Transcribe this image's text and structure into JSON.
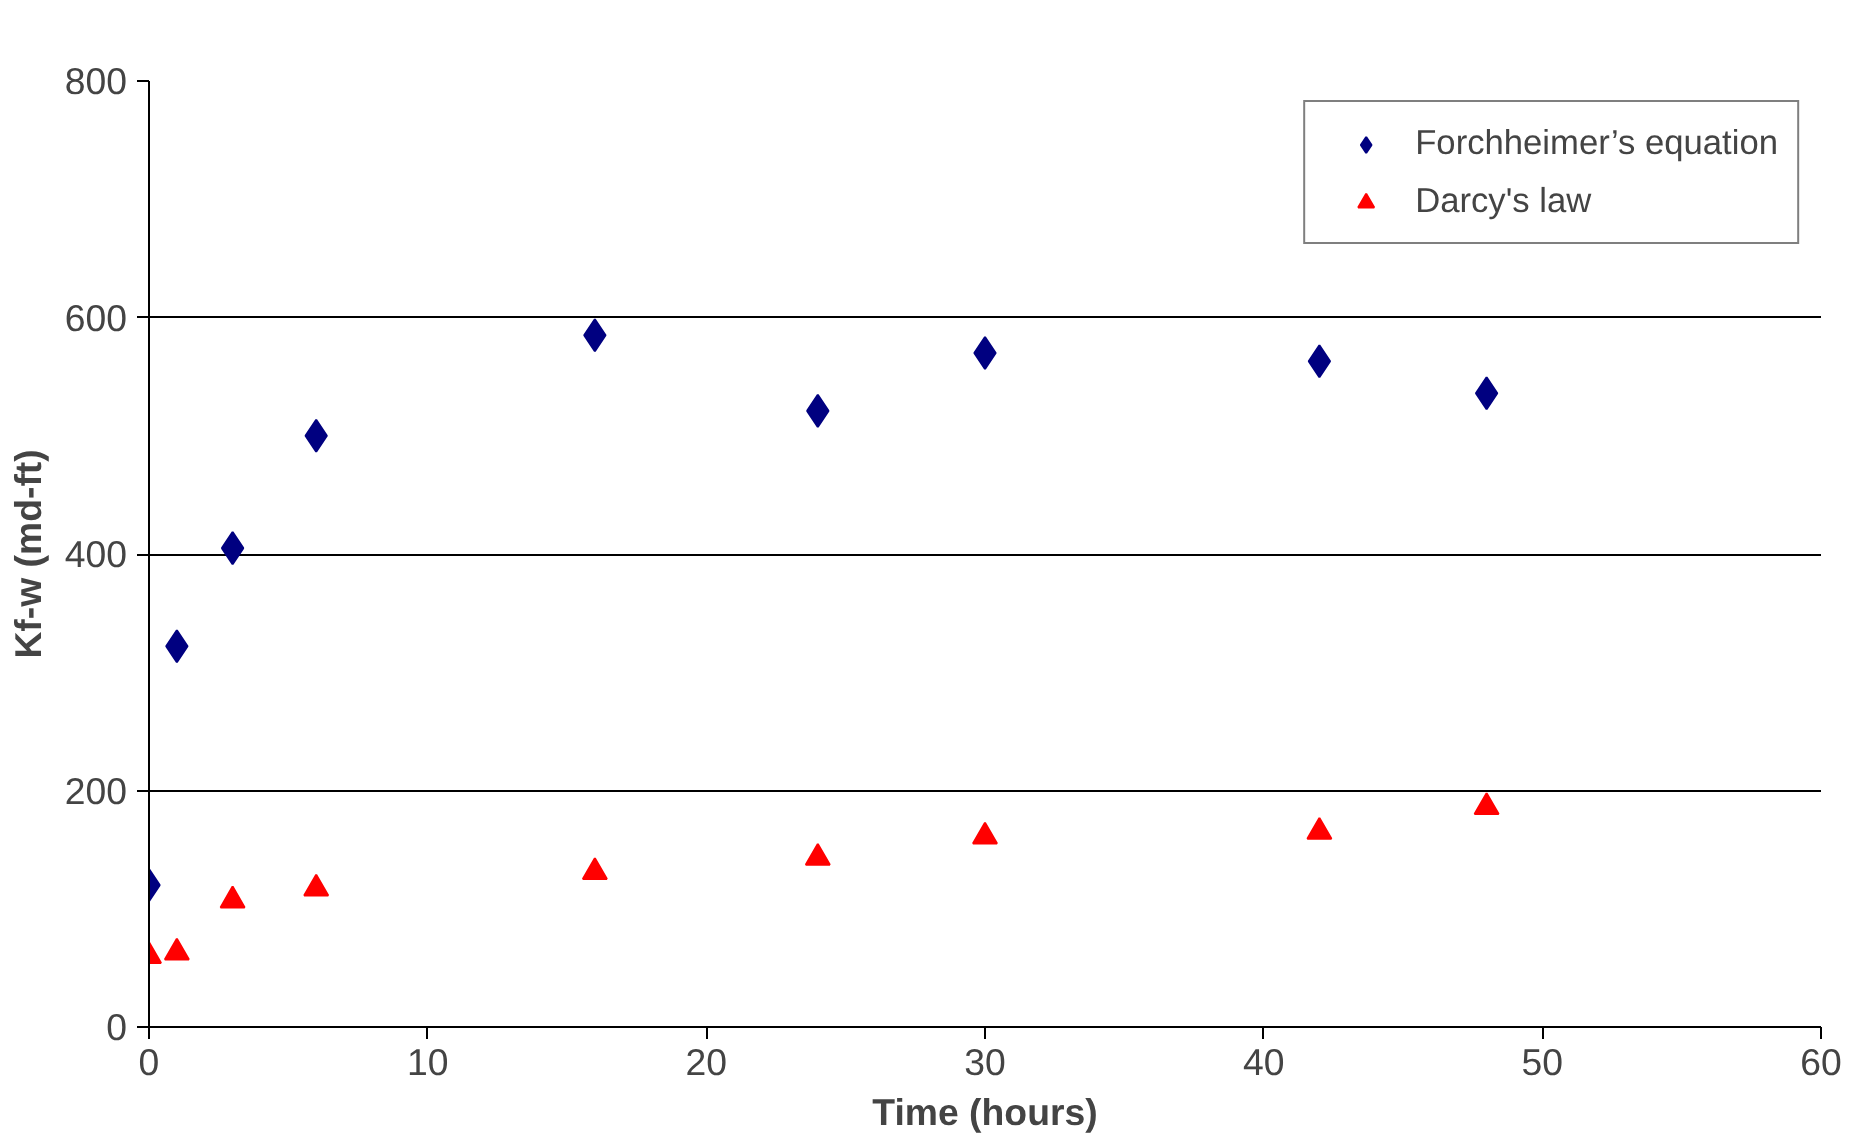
{
  "chart_data": {
    "type": "scatter",
    "xlabel": "Time (hours)",
    "ylabel": "Kf-w (md-ft)",
    "xlim": [
      0,
      60
    ],
    "ylim": [
      0,
      800
    ],
    "xticks": [
      0,
      10,
      20,
      30,
      40,
      50,
      60
    ],
    "yticks": [
      0,
      200,
      400,
      600,
      800
    ],
    "grid": "y",
    "legend": "top right",
    "x": [
      0,
      1,
      3,
      6,
      16,
      24,
      30,
      42,
      48
    ],
    "series": [
      {
        "name": "Forchheimer’s equation",
        "color": "#000080",
        "marker": "diamond",
        "values": [
          120,
          322,
          405,
          500,
          585,
          521,
          570,
          563,
          536
        ]
      },
      {
        "name": "Darcy's law",
        "color": "#ff0000",
        "marker": "triangle",
        "values": [
          60,
          63,
          107,
          117,
          131,
          143,
          161,
          165,
          186
        ]
      }
    ]
  }
}
